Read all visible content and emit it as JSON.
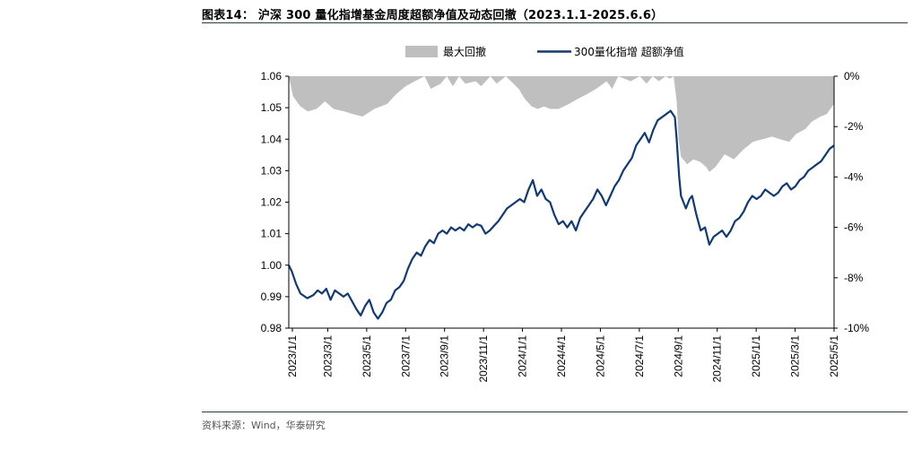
{
  "figure": {
    "title": "图表14： 沪深 300 量化指增基金周度超额净值及动态回撤（2023.1.1-2025.6.6）",
    "source": "资料来源：Wind，华泰研究"
  },
  "chart_data": {
    "type": "line",
    "series": [
      {
        "name": "最大回撤",
        "axis": "right",
        "render": "area",
        "color": "#bfbfbf",
        "unit": "%",
        "points": [
          [
            "2023-01-01",
            0.0
          ],
          [
            "2023-01-08",
            -0.8
          ],
          [
            "2023-01-20",
            -1.2
          ],
          [
            "2023-02-01",
            -1.4
          ],
          [
            "2023-02-15",
            -1.3
          ],
          [
            "2023-03-01",
            -1.0
          ],
          [
            "2023-03-15",
            -1.3
          ],
          [
            "2023-04-01",
            -1.4
          ],
          [
            "2023-04-15",
            -1.5
          ],
          [
            "2023-05-01",
            -1.6
          ],
          [
            "2023-05-20",
            -1.3
          ],
          [
            "2023-06-10",
            -1.1
          ],
          [
            "2023-06-25",
            -0.7
          ],
          [
            "2023-07-10",
            -0.4
          ],
          [
            "2023-07-25",
            -0.2
          ],
          [
            "2023-08-10",
            0.0
          ],
          [
            "2023-08-20",
            -0.5
          ],
          [
            "2023-09-05",
            -0.3
          ],
          [
            "2023-09-15",
            0.0
          ],
          [
            "2023-09-25",
            -0.4
          ],
          [
            "2023-10-05",
            0.0
          ],
          [
            "2023-10-15",
            -0.3
          ],
          [
            "2023-11-01",
            -0.2
          ],
          [
            "2023-11-10",
            -0.4
          ],
          [
            "2023-11-25",
            0.0
          ],
          [
            "2023-12-05",
            -0.3
          ],
          [
            "2023-12-20",
            0.0
          ],
          [
            "2024-01-10",
            -0.5
          ],
          [
            "2024-01-20",
            -0.9
          ],
          [
            "2024-01-31",
            -1.2
          ],
          [
            "2024-02-10",
            -1.3
          ],
          [
            "2024-02-20",
            -1.2
          ],
          [
            "2024-03-01",
            -1.3
          ],
          [
            "2024-03-15",
            -1.3
          ],
          [
            "2024-04-01",
            -1.1
          ],
          [
            "2024-04-15",
            -0.9
          ],
          [
            "2024-05-01",
            -0.7
          ],
          [
            "2024-05-15",
            -0.5
          ],
          [
            "2024-06-01",
            -0.2
          ],
          [
            "2024-06-10",
            -0.5
          ],
          [
            "2024-06-20",
            0.0
          ],
          [
            "2024-07-10",
            -0.2
          ],
          [
            "2024-07-25",
            0.0
          ],
          [
            "2024-08-05",
            -0.3
          ],
          [
            "2024-08-15",
            0.0
          ],
          [
            "2024-08-25",
            -0.2
          ],
          [
            "2024-09-05",
            0.0
          ],
          [
            "2024-09-12",
            -0.1
          ],
          [
            "2024-09-18",
            0.0
          ],
          [
            "2024-09-23",
            -1.0
          ],
          [
            "2024-09-26",
            -2.5
          ],
          [
            "2024-09-30",
            -3.2
          ],
          [
            "2024-10-10",
            -3.5
          ],
          [
            "2024-10-20",
            -3.3
          ],
          [
            "2024-10-31",
            -3.4
          ],
          [
            "2024-11-10",
            -3.6
          ],
          [
            "2024-11-15",
            -3.8
          ],
          [
            "2024-11-25",
            -3.6
          ],
          [
            "2024-12-10",
            -3.1
          ],
          [
            "2024-12-25",
            -3.3
          ],
          [
            "2025-01-10",
            -2.9
          ],
          [
            "2025-01-25",
            -2.6
          ],
          [
            "2025-02-10",
            -2.5
          ],
          [
            "2025-02-25",
            -2.4
          ],
          [
            "2025-03-10",
            -2.5
          ],
          [
            "2025-03-25",
            -2.6
          ],
          [
            "2025-04-05",
            -2.3
          ],
          [
            "2025-04-20",
            -2.1
          ],
          [
            "2025-05-01",
            -1.8
          ],
          [
            "2025-05-15",
            -1.6
          ],
          [
            "2025-05-25",
            -1.5
          ],
          [
            "2025-06-06",
            -1.1
          ]
        ]
      },
      {
        "name": "300量化指增 超额净值",
        "axis": "left",
        "render": "line",
        "color": "#0e3a7a",
        "points": [
          [
            "2023-01-01",
            1.0
          ],
          [
            "2023-01-06",
            0.998
          ],
          [
            "2023-01-13",
            0.994
          ],
          [
            "2023-01-20",
            0.991
          ],
          [
            "2023-01-31",
            0.9895
          ],
          [
            "2023-02-10",
            0.9905
          ],
          [
            "2023-02-17",
            0.992
          ],
          [
            "2023-02-24",
            0.991
          ],
          [
            "2023-03-03",
            0.9925
          ],
          [
            "2023-03-10",
            0.989
          ],
          [
            "2023-03-17",
            0.992
          ],
          [
            "2023-03-24",
            0.991
          ],
          [
            "2023-03-31",
            0.99
          ],
          [
            "2023-04-07",
            0.991
          ],
          [
            "2023-04-14",
            0.9885
          ],
          [
            "2023-04-21",
            0.986
          ],
          [
            "2023-04-28",
            0.984
          ],
          [
            "2023-05-05",
            0.987
          ],
          [
            "2023-05-12",
            0.989
          ],
          [
            "2023-05-19",
            0.985
          ],
          [
            "2023-05-26",
            0.983
          ],
          [
            "2023-06-02",
            0.985
          ],
          [
            "2023-06-09",
            0.988
          ],
          [
            "2023-06-16",
            0.989
          ],
          [
            "2023-06-23",
            0.992
          ],
          [
            "2023-06-30",
            0.993
          ],
          [
            "2023-07-07",
            0.995
          ],
          [
            "2023-07-14",
            0.999
          ],
          [
            "2023-07-21",
            1.002
          ],
          [
            "2023-07-28",
            1.004
          ],
          [
            "2023-08-04",
            1.003
          ],
          [
            "2023-08-11",
            1.006
          ],
          [
            "2023-08-18",
            1.008
          ],
          [
            "2023-08-25",
            1.007
          ],
          [
            "2023-09-01",
            1.01
          ],
          [
            "2023-09-08",
            1.011
          ],
          [
            "2023-09-15",
            1.01
          ],
          [
            "2023-09-22",
            1.012
          ],
          [
            "2023-09-29",
            1.011
          ],
          [
            "2023-10-06",
            1.012
          ],
          [
            "2023-10-13",
            1.011
          ],
          [
            "2023-10-20",
            1.013
          ],
          [
            "2023-10-27",
            1.012
          ],
          [
            "2023-11-03",
            1.013
          ],
          [
            "2023-11-10",
            1.0125
          ],
          [
            "2023-11-17",
            1.01
          ],
          [
            "2023-11-24",
            1.011
          ],
          [
            "2023-12-01",
            1.0125
          ],
          [
            "2023-12-08",
            1.014
          ],
          [
            "2023-12-15",
            1.016
          ],
          [
            "2023-12-22",
            1.018
          ],
          [
            "2023-12-29",
            1.019
          ],
          [
            "2024-01-05",
            1.02
          ],
          [
            "2024-01-12",
            1.021
          ],
          [
            "2024-01-19",
            1.02
          ],
          [
            "2024-01-26",
            1.024
          ],
          [
            "2024-02-02",
            1.027
          ],
          [
            "2024-02-09",
            1.022
          ],
          [
            "2024-02-16",
            1.024
          ],
          [
            "2024-02-23",
            1.021
          ],
          [
            "2024-03-01",
            1.02
          ],
          [
            "2024-03-08",
            1.016
          ],
          [
            "2024-03-15",
            1.013
          ],
          [
            "2024-03-22",
            1.014
          ],
          [
            "2024-03-29",
            1.012
          ],
          [
            "2024-04-05",
            1.014
          ],
          [
            "2024-04-12",
            1.011
          ],
          [
            "2024-04-19",
            1.015
          ],
          [
            "2024-04-26",
            1.017
          ],
          [
            "2024-05-03",
            1.019
          ],
          [
            "2024-05-10",
            1.021
          ],
          [
            "2024-05-17",
            1.024
          ],
          [
            "2024-05-24",
            1.022
          ],
          [
            "2024-05-31",
            1.019
          ],
          [
            "2024-06-07",
            1.022
          ],
          [
            "2024-06-14",
            1.025
          ],
          [
            "2024-06-21",
            1.027
          ],
          [
            "2024-06-28",
            1.03
          ],
          [
            "2024-07-05",
            1.032
          ],
          [
            "2024-07-12",
            1.034
          ],
          [
            "2024-07-19",
            1.038
          ],
          [
            "2024-07-26",
            1.04
          ],
          [
            "2024-08-02",
            1.042
          ],
          [
            "2024-08-09",
            1.039
          ],
          [
            "2024-08-16",
            1.043
          ],
          [
            "2024-08-23",
            1.046
          ],
          [
            "2024-08-30",
            1.047
          ],
          [
            "2024-09-06",
            1.048
          ],
          [
            "2024-09-13",
            1.049
          ],
          [
            "2024-09-20",
            1.047
          ],
          [
            "2024-09-23",
            1.04
          ],
          [
            "2024-09-27",
            1.028
          ],
          [
            "2024-09-30",
            1.022
          ],
          [
            "2024-10-08",
            1.018
          ],
          [
            "2024-10-14",
            1.021
          ],
          [
            "2024-10-18",
            1.022
          ],
          [
            "2024-10-25",
            1.016
          ],
          [
            "2024-11-01",
            1.011
          ],
          [
            "2024-11-08",
            1.012
          ],
          [
            "2024-11-15",
            1.0065
          ],
          [
            "2024-11-22",
            1.009
          ],
          [
            "2024-11-29",
            1.01
          ],
          [
            "2024-12-06",
            1.011
          ],
          [
            "2024-12-13",
            1.009
          ],
          [
            "2024-12-20",
            1.011
          ],
          [
            "2024-12-27",
            1.014
          ],
          [
            "2025-01-03",
            1.015
          ],
          [
            "2025-01-10",
            1.017
          ],
          [
            "2025-01-17",
            1.02
          ],
          [
            "2025-01-24",
            1.022
          ],
          [
            "2025-01-31",
            1.021
          ],
          [
            "2025-02-07",
            1.022
          ],
          [
            "2025-02-14",
            1.024
          ],
          [
            "2025-02-21",
            1.023
          ],
          [
            "2025-02-28",
            1.022
          ],
          [
            "2025-03-07",
            1.023
          ],
          [
            "2025-03-14",
            1.025
          ],
          [
            "2025-03-21",
            1.026
          ],
          [
            "2025-03-28",
            1.024
          ],
          [
            "2025-04-04",
            1.025
          ],
          [
            "2025-04-11",
            1.027
          ],
          [
            "2025-04-18",
            1.028
          ],
          [
            "2025-04-25",
            1.03
          ],
          [
            "2025-05-02",
            1.031
          ],
          [
            "2025-05-09",
            1.032
          ],
          [
            "2025-05-16",
            1.033
          ],
          [
            "2025-05-23",
            1.035
          ],
          [
            "2025-05-30",
            1.037
          ],
          [
            "2025-06-06",
            1.038
          ]
        ]
      }
    ],
    "x_ticks": [
      "2023/1/1",
      "2023/3/1",
      "2023/5/1",
      "2023/7/1",
      "2023/9/1",
      "2023/11/1",
      "2024/1/1",
      "2024/4/1",
      "2024/5/1",
      "2024/7/1",
      "2024/9/1",
      "2024/11/1",
      "2025/1/1",
      "2025/3/1",
      "2025/5/1"
    ],
    "x_range": [
      "2023-01-01",
      "2025-06-06"
    ],
    "y_left": {
      "ticks": [
        "0.98",
        "0.99",
        "1.00",
        "1.01",
        "1.02",
        "1.03",
        "1.04",
        "1.05",
        "1.06"
      ],
      "range": [
        0.98,
        1.06
      ]
    },
    "y_right": {
      "ticks": [
        "-10%",
        "-8%",
        "-6%",
        "-4%",
        "-2%",
        "0%"
      ],
      "range": [
        -10,
        0
      ]
    },
    "legend_position": "top-center",
    "grid": false
  }
}
